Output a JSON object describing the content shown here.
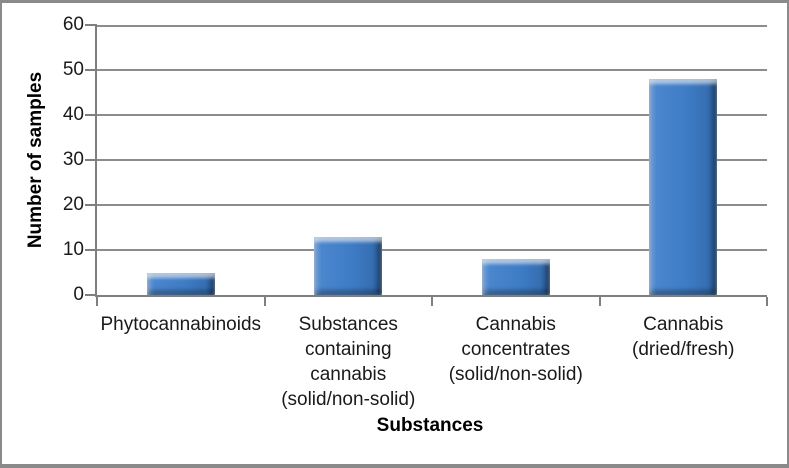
{
  "chart_data": {
    "type": "bar",
    "title": "",
    "categories": [
      "Phytocannabinoids",
      "Substances containing cannabis (solid/non-solid)",
      "Cannabis concentrates (solid/non-solid)",
      "Cannabis (dried/fresh)"
    ],
    "category_lines": [
      [
        "Phytocannabinoids"
      ],
      [
        "Substances",
        "containing",
        "cannabis",
        "(solid/non-solid)"
      ],
      [
        "Cannabis",
        "concentrates",
        "(solid/non-solid)"
      ],
      [
        "Cannabis",
        "(dried/fresh)"
      ]
    ],
    "values": [
      5,
      13,
      8,
      48
    ],
    "xlabel": "Substances",
    "ylabel": "Number of samples",
    "ylim": [
      0,
      60
    ],
    "yticks": [
      0,
      10,
      20,
      30,
      40,
      50,
      60
    ],
    "grid": true,
    "legend": false,
    "bar_color": "#3E7CC6"
  },
  "colors": {
    "bar-fill": "#3E7CC6",
    "bar-fill-light": "#6FA3DC",
    "bar-fill-dark": "#2B5C95",
    "gridline": "#8C8C8C",
    "axis": "#7F7F7F",
    "frame-border": "#8A8A8A",
    "text": "#1A1A1A",
    "background": "#FFFFFF"
  }
}
